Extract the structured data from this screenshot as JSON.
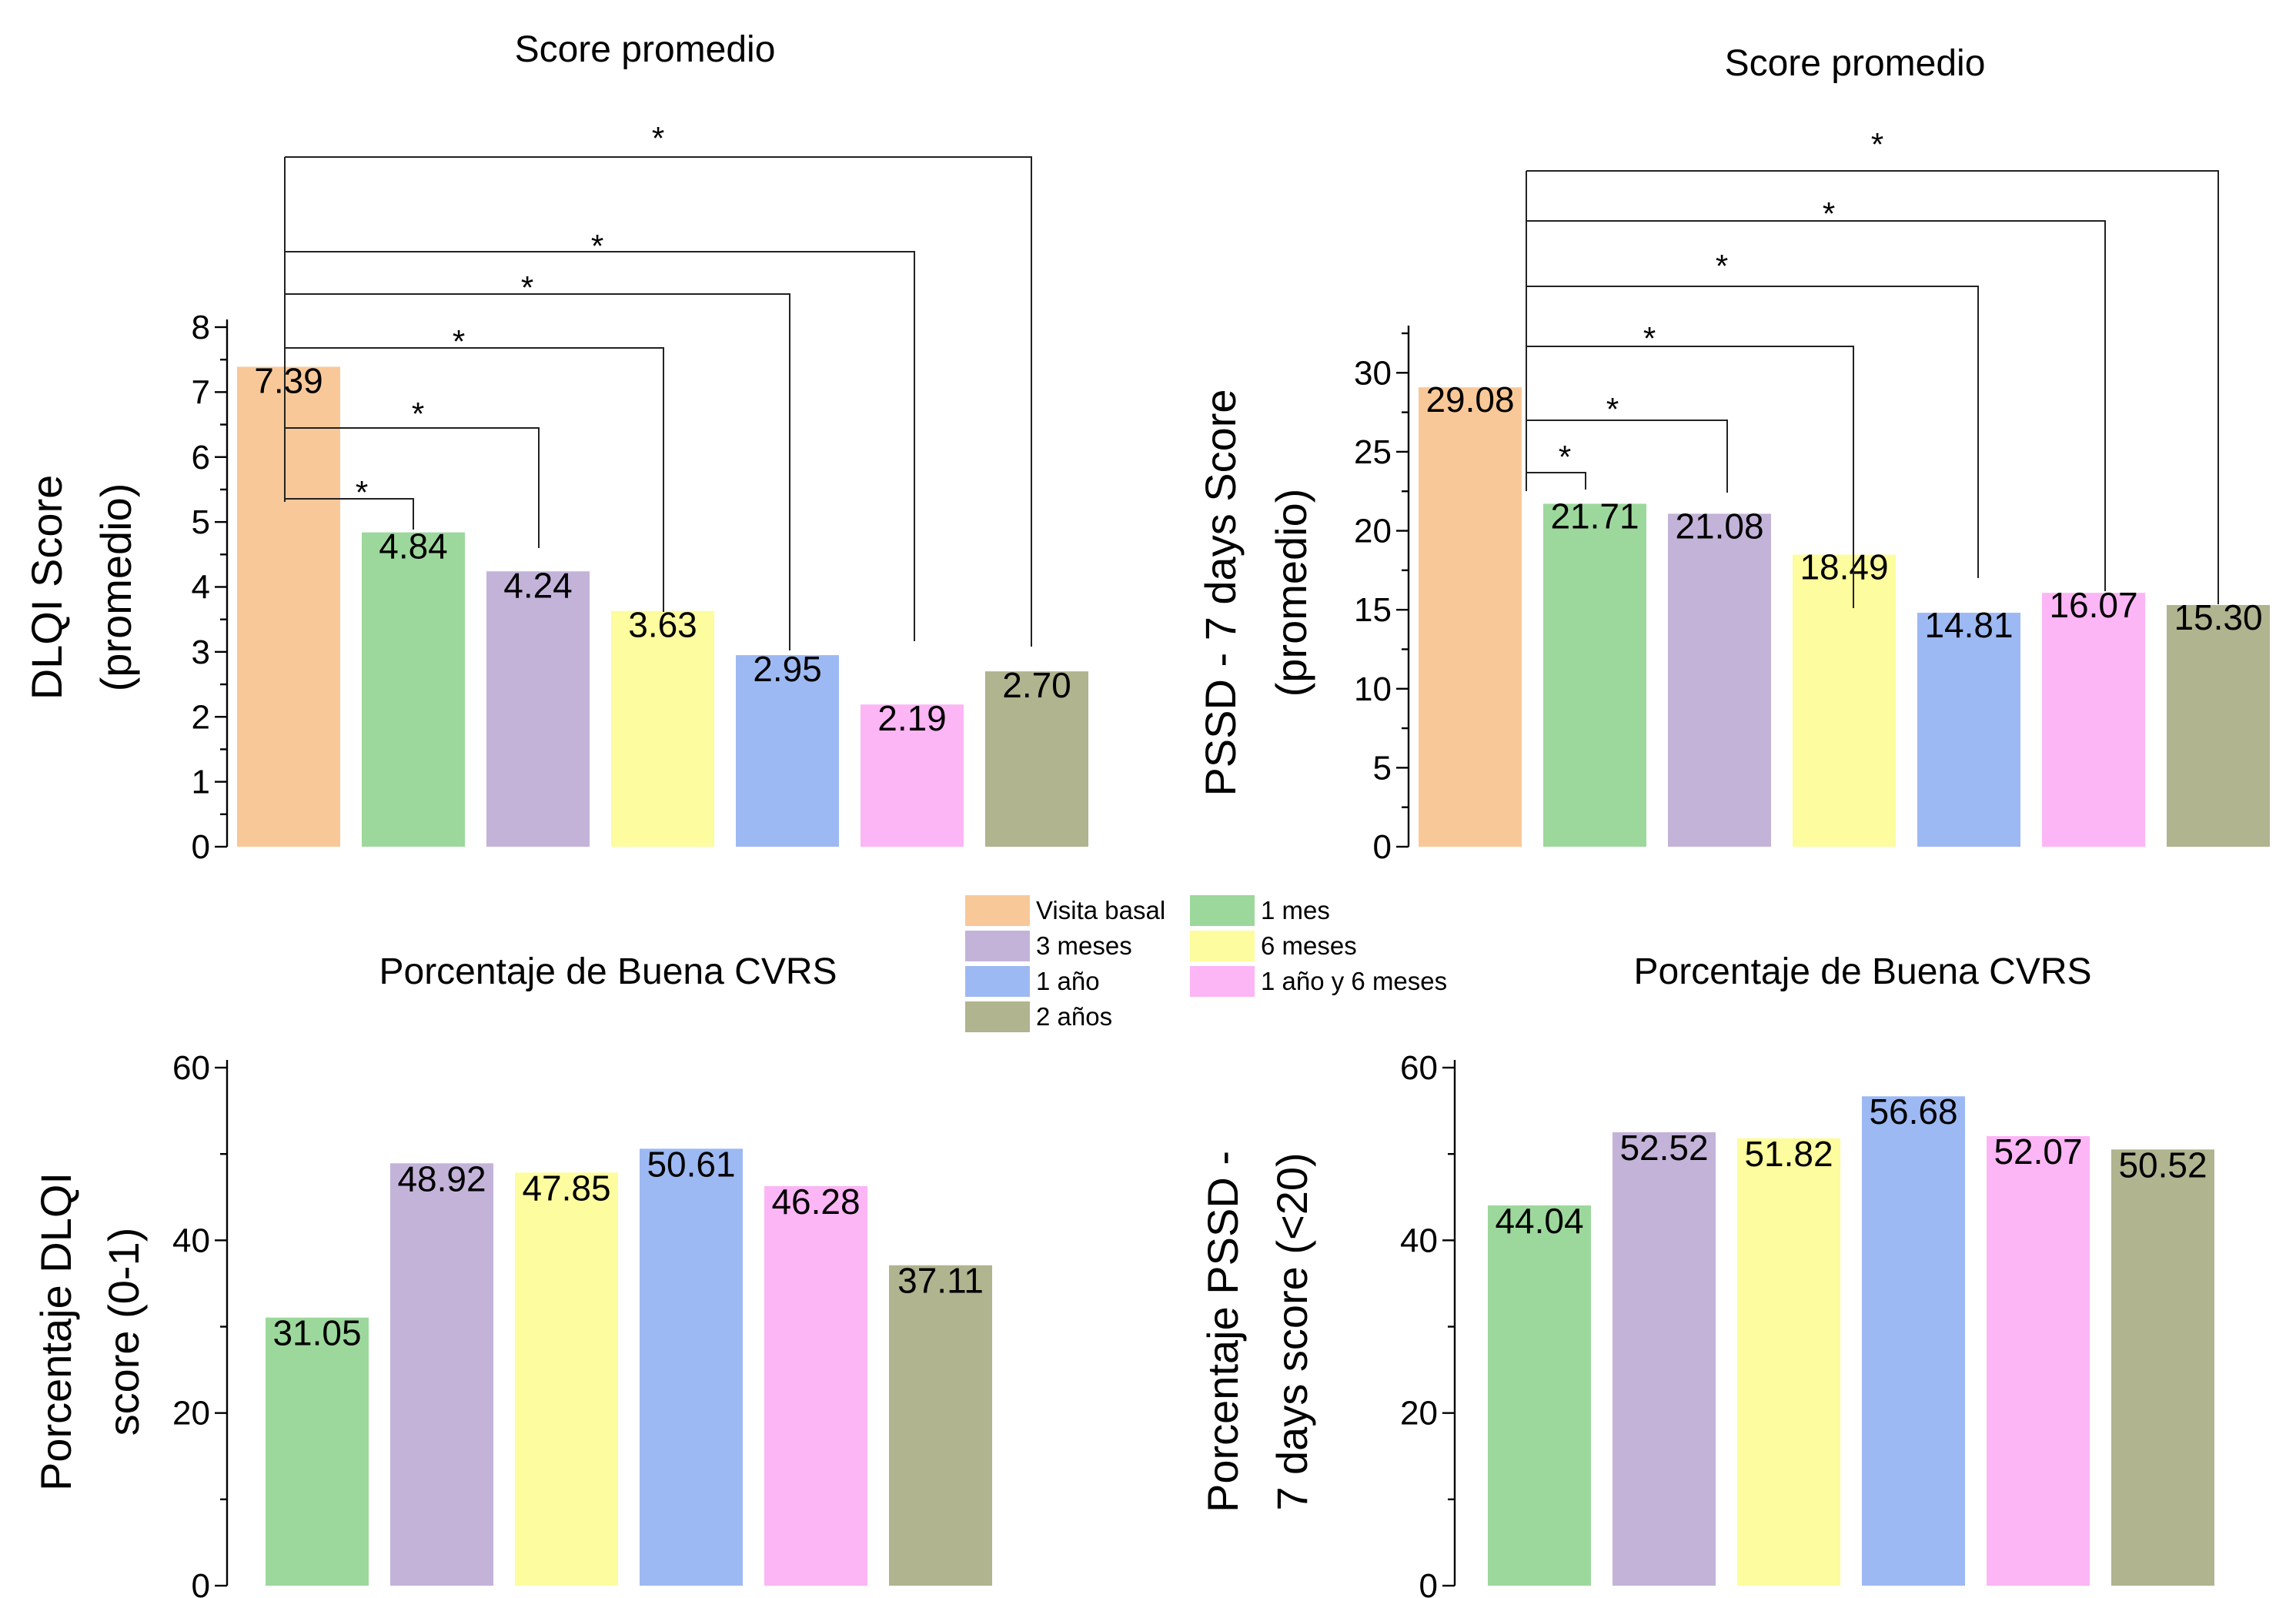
{
  "legend": {
    "items": [
      {
        "label": "Visita basal",
        "color": "#f9c898"
      },
      {
        "label": "1 mes",
        "color": "#9cd89c"
      },
      {
        "label": "3 meses",
        "color": "#c3b3d9"
      },
      {
        "label": "6 meses",
        "color": "#fdfc9e"
      },
      {
        "label": "1 año",
        "color": "#9db9f3"
      },
      {
        "label": "1 año y 6 meses",
        "color": "#fcb5f5"
      },
      {
        "label": "2 años",
        "color": "#b0b48f"
      }
    ]
  },
  "significance_marker": "*",
  "chart_data": [
    {
      "id": "dlqi-mean",
      "type": "bar",
      "title": "Score promedio",
      "ylabel_lines": [
        "DLQI Score",
        "(promedio)"
      ],
      "xlabel": "",
      "ylim": [
        0,
        8
      ],
      "yticks": [
        0,
        1,
        2,
        3,
        4,
        5,
        6,
        7,
        8
      ],
      "categories": [
        "Visita basal",
        "1 mes",
        "3 meses",
        "6 meses",
        "1 año",
        "1 año y 6 meses",
        "2 años"
      ],
      "values": [
        7.39,
        4.84,
        4.24,
        3.63,
        2.95,
        2.19,
        2.7
      ],
      "value_labels": [
        "7.39",
        "4.84",
        "4.24",
        "3.63",
        "2.95",
        "2.19",
        "2.70"
      ],
      "colors": [
        "#f9c898",
        "#9cd89c",
        "#c3b3d9",
        "#fdfc9e",
        "#9db9f3",
        "#fcb5f5",
        "#b0b48f"
      ],
      "significance": [
        {
          "from": "Visita basal",
          "to": "1 mes",
          "label": "*"
        },
        {
          "from": "Visita basal",
          "to": "3 meses",
          "label": "*"
        },
        {
          "from": "Visita basal",
          "to": "6 meses",
          "label": "*"
        },
        {
          "from": "Visita basal",
          "to": "1 año",
          "label": "*"
        },
        {
          "from": "Visita basal",
          "to": "1 año y 6 meses",
          "label": "*"
        },
        {
          "from": "Visita basal",
          "to": "2 años",
          "label": "*"
        }
      ],
      "grid": false
    },
    {
      "id": "pssd-mean",
      "type": "bar",
      "title": "Score promedio",
      "ylabel_lines": [
        "PSSD - 7 days Score",
        "(promedio)"
      ],
      "xlabel": "",
      "ylim": [
        0,
        32.5
      ],
      "yticks": [
        0,
        5,
        10,
        15,
        20,
        25,
        30
      ],
      "categories": [
        "Visita basal",
        "1 mes",
        "3 meses",
        "6 meses",
        "1 año",
        "1 año y 6 meses",
        "2 años"
      ],
      "values": [
        29.08,
        21.71,
        21.08,
        18.49,
        14.81,
        16.07,
        15.3
      ],
      "value_labels": [
        "29.08",
        "21.71",
        "21.08",
        "18.49",
        "14.81",
        "16.07",
        "15.30"
      ],
      "colors": [
        "#f9c898",
        "#9cd89c",
        "#c3b3d9",
        "#fdfc9e",
        "#9db9f3",
        "#fcb5f5",
        "#b0b48f"
      ],
      "significance": [
        {
          "from": "Visita basal",
          "to": "1 mes",
          "label": "*"
        },
        {
          "from": "Visita basal",
          "to": "3 meses",
          "label": "*"
        },
        {
          "from": "Visita basal",
          "to": "6 meses",
          "label": "*"
        },
        {
          "from": "Visita basal",
          "to": "1 año",
          "label": "*"
        },
        {
          "from": "Visita basal",
          "to": "1 año y 6 meses",
          "label": "*"
        },
        {
          "from": "Visita basal",
          "to": "2 años",
          "label": "*"
        }
      ],
      "grid": false
    },
    {
      "id": "dlqi-good-pct",
      "type": "bar",
      "title": "Porcentaje de Buena CVRS",
      "ylabel_lines": [
        "Porcentaje DLQI",
        "score (0-1)"
      ],
      "xlabel": "",
      "ylim": [
        0,
        60
      ],
      "yticks": [
        0,
        20,
        40,
        60
      ],
      "categories": [
        "1 mes",
        "3 meses",
        "6 meses",
        "1 año",
        "1 año y 6 meses",
        "2 años"
      ],
      "values": [
        31.05,
        48.92,
        47.85,
        50.61,
        46.28,
        37.11
      ],
      "value_labels": [
        "31.05",
        "48.92",
        "47.85",
        "50.61",
        "46.28",
        "37.11"
      ],
      "colors": [
        "#9cd89c",
        "#c3b3d9",
        "#fdfc9e",
        "#9db9f3",
        "#fcb5f5",
        "#b0b48f"
      ],
      "significance": [],
      "grid": false
    },
    {
      "id": "pssd-good-pct",
      "type": "bar",
      "title": "Porcentaje de Buena CVRS",
      "ylabel_lines": [
        "Porcentaje PSSD -",
        "7 days score (<20)"
      ],
      "xlabel": "",
      "ylim": [
        0,
        60
      ],
      "yticks": [
        0,
        20,
        40,
        60
      ],
      "categories": [
        "1 mes",
        "3 meses",
        "6 meses",
        "1 año",
        "1 año y 6 meses",
        "2 años"
      ],
      "values": [
        44.04,
        52.52,
        51.82,
        56.68,
        52.07,
        50.52
      ],
      "value_labels": [
        "44.04",
        "52.52",
        "51.82",
        "56.68",
        "52.07",
        "50.52"
      ],
      "colors": [
        "#9cd89c",
        "#c3b3d9",
        "#fdfc9e",
        "#9db9f3",
        "#fcb5f5",
        "#b0b48f"
      ],
      "significance": [],
      "grid": false
    }
  ]
}
